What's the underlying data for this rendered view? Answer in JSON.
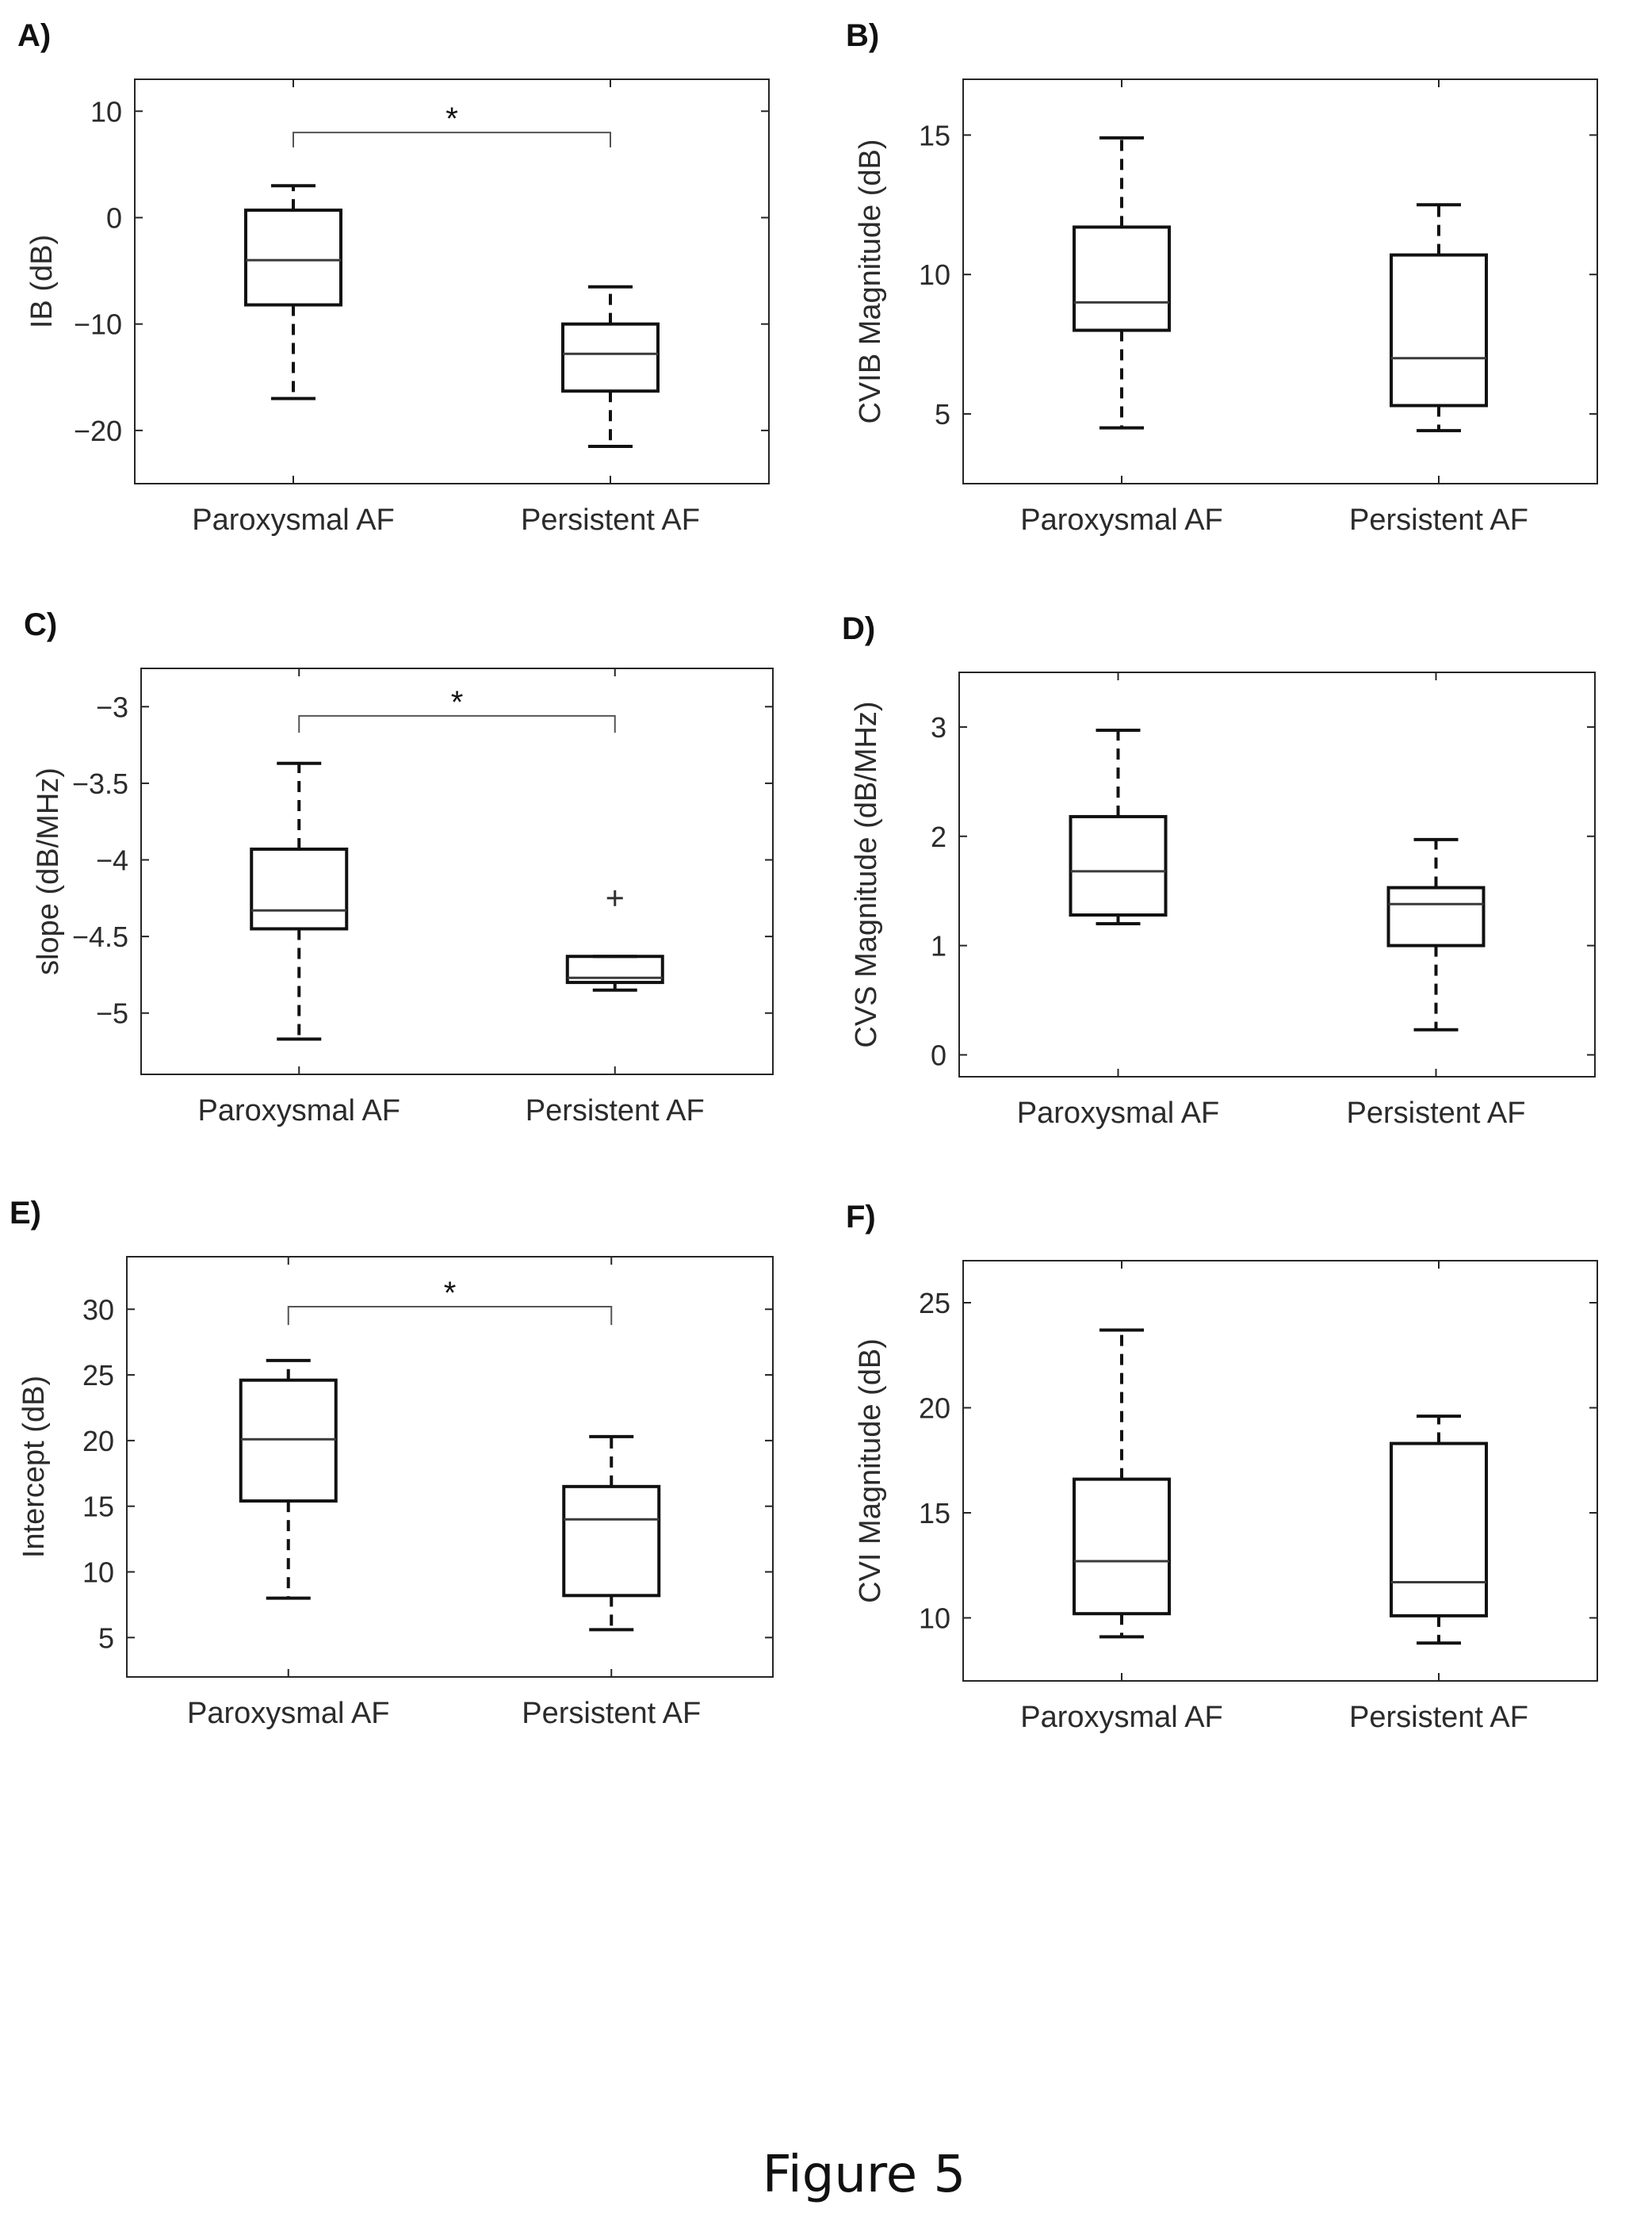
{
  "figure": {
    "caption": "Figure 5"
  },
  "chart_data": [
    {
      "panel": "A)",
      "type": "box",
      "ylabel": "IB (dB)",
      "ylim": [
        -25,
        13
      ],
      "yticks": [
        -20,
        -10,
        0,
        10
      ],
      "categories": [
        "Paroxysmal AF",
        "Persistent AF"
      ],
      "boxes": [
        {
          "category": "Paroxysmal AF",
          "whisker_low": -17,
          "q1": -8.2,
          "median": -4,
          "q3": 0.7,
          "whisker_high": 3,
          "outliers": []
        },
        {
          "category": "Persistent AF",
          "whisker_low": -21.5,
          "q1": -16.3,
          "median": -12.8,
          "q3": -10,
          "whisker_high": -6.5,
          "outliers": []
        }
      ],
      "significance": {
        "label": "*",
        "between": [
          0,
          1
        ],
        "y": 8,
        "tick_low": 6.6
      }
    },
    {
      "panel": "B)",
      "type": "box",
      "ylabel": "CVIB Magnitude (dB)",
      "ylim": [
        2.5,
        17
      ],
      "yticks": [
        5,
        10,
        15
      ],
      "categories": [
        "Paroxysmal AF",
        "Persistent AF"
      ],
      "boxes": [
        {
          "category": "Paroxysmal AF",
          "whisker_low": 4.5,
          "q1": 8,
          "median": 9,
          "q3": 11.7,
          "whisker_high": 14.9,
          "outliers": []
        },
        {
          "category": "Persistent AF",
          "whisker_low": 4.4,
          "q1": 5.3,
          "median": 7,
          "q3": 10.7,
          "whisker_high": 12.5,
          "outliers": []
        }
      ]
    },
    {
      "panel": "C)",
      "type": "box",
      "ylabel": "slope (dB/MHz)",
      "ylim": [
        -5.4,
        -2.75
      ],
      "yticks": [
        -5,
        -4.5,
        -4,
        -3.5,
        -3
      ],
      "categories": [
        "Paroxysmal AF",
        "Persistent AF"
      ],
      "boxes": [
        {
          "category": "Paroxysmal AF",
          "whisker_low": -5.17,
          "q1": -4.45,
          "median": -4.33,
          "q3": -3.93,
          "whisker_high": -3.37,
          "outliers": []
        },
        {
          "category": "Persistent AF",
          "whisker_low": -4.85,
          "q1": -4.8,
          "median": -4.77,
          "q3": -4.63,
          "whisker_high": -4.63,
          "outliers": [
            -4.25
          ]
        }
      ],
      "significance": {
        "label": "*",
        "between": [
          0,
          1
        ],
        "y": -3.06,
        "tick_low": -3.17
      }
    },
    {
      "panel": "D)",
      "type": "box",
      "ylabel": "CVS Magnitude (dB/MHz)",
      "ylim": [
        -0.2,
        3.5
      ],
      "yticks": [
        0,
        1,
        2,
        3
      ],
      "categories": [
        "Paroxysmal AF",
        "Persistent AF"
      ],
      "boxes": [
        {
          "category": "Paroxysmal AF",
          "whisker_low": 1.2,
          "q1": 1.28,
          "median": 1.68,
          "q3": 2.18,
          "whisker_high": 2.97,
          "outliers": []
        },
        {
          "category": "Persistent AF",
          "whisker_low": 0.23,
          "q1": 1,
          "median": 1.38,
          "q3": 1.53,
          "whisker_high": 1.97,
          "outliers": []
        }
      ]
    },
    {
      "panel": "E)",
      "type": "box",
      "ylabel": "Intercept (dB)",
      "ylim": [
        2,
        34
      ],
      "yticks": [
        5,
        10,
        15,
        20,
        25,
        30
      ],
      "categories": [
        "Paroxysmal AF",
        "Persistent AF"
      ],
      "boxes": [
        {
          "category": "Paroxysmal AF",
          "whisker_low": 8,
          "q1": 15.4,
          "median": 20.1,
          "q3": 24.6,
          "whisker_high": 26.1,
          "outliers": []
        },
        {
          "category": "Persistent AF",
          "whisker_low": 5.6,
          "q1": 8.2,
          "median": 14,
          "q3": 16.5,
          "whisker_high": 20.3,
          "outliers": []
        }
      ],
      "significance": {
        "label": "*",
        "between": [
          0,
          1
        ],
        "y": 30.2,
        "tick_low": 28.8
      }
    },
    {
      "panel": "F)",
      "type": "box",
      "ylabel": "CVI Magnitude (dB)",
      "ylim": [
        7,
        27
      ],
      "yticks": [
        10,
        15,
        20,
        25
      ],
      "categories": [
        "Paroxysmal AF",
        "Persistent AF"
      ],
      "boxes": [
        {
          "category": "Paroxysmal AF",
          "whisker_low": 9.1,
          "q1": 10.2,
          "median": 12.7,
          "q3": 16.6,
          "whisker_high": 23.7,
          "outliers": []
        },
        {
          "category": "Persistent AF",
          "whisker_low": 8.8,
          "q1": 10.1,
          "median": 11.7,
          "q3": 18.3,
          "whisker_high": 19.6,
          "outliers": []
        }
      ]
    }
  ]
}
